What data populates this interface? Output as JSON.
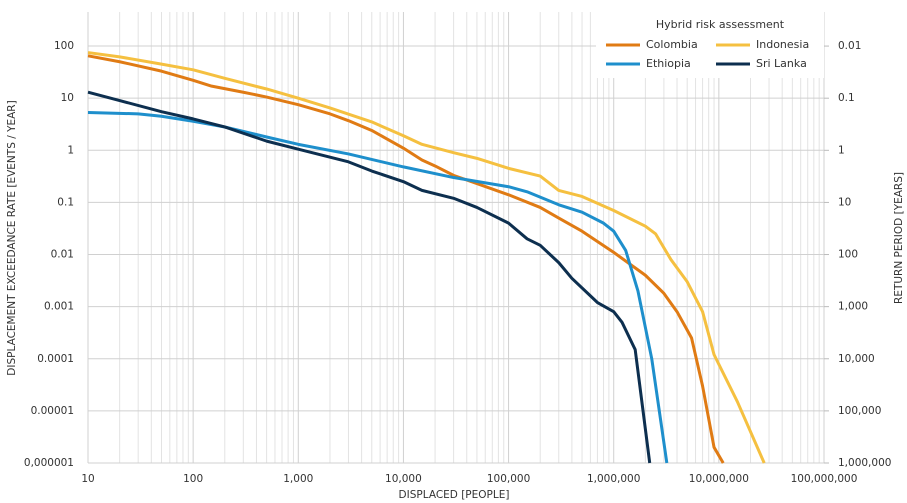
{
  "chart_data": {
    "type": "line",
    "y_axis_label": "DISPLACEMENT EXCEEDANCE RATE [EVENTS / YEAR]",
    "x_axis_label": "DISPLACED [PEOPLE]",
    "y2_axis_label": "RETURN PERIOD [YEARS]",
    "legend_title": "Hybrid risk assessment",
    "legend_position": "upper right",
    "x_log": true,
    "y_log": true,
    "y2_log": true,
    "grid": true,
    "xlim": [
      10,
      100000000
    ],
    "ylim": [
      1e-06,
      450
    ],
    "y2lim": [
      1000000,
      0.00222
    ],
    "xticks": [
      10,
      100,
      {
        "value": 1000,
        "label": "1,000"
      },
      {
        "value": 10000,
        "label": "10,000"
      },
      {
        "value": 100000,
        "label": "100,000"
      },
      {
        "value": 1000000,
        "label": "1,000,000"
      },
      {
        "value": 10000000,
        "label": "10,000,000"
      },
      {
        "value": 100000000,
        "label": "100,000,000"
      }
    ],
    "yticks": [
      {
        "value": 1e-06,
        "label": "0,000001"
      },
      1e-05,
      0.0001,
      0.001,
      0.01,
      0.1,
      1,
      10,
      100
    ],
    "y2ticks": [
      {
        "value": 1000000,
        "label": "1,000,000"
      },
      {
        "value": 100000,
        "label": "100,000"
      },
      {
        "value": 10000,
        "label": "10,000"
      },
      {
        "value": 1000,
        "label": "1,000"
      },
      100,
      10,
      1,
      0.1,
      0.01
    ],
    "series": [
      {
        "name": "Colombia",
        "color": "#e07b14",
        "x": [
          10,
          20,
          50,
          100,
          150,
          300,
          500,
          1000,
          2000,
          3000,
          5000,
          10000,
          15000,
          20000,
          30000,
          50000,
          100000,
          200000,
          300000,
          500000,
          1000000,
          2000000,
          3000000,
          4000000,
          5500000,
          7000000,
          9000000,
          11000000
        ],
        "values": [
          65,
          50,
          33,
          22,
          17,
          13,
          10.5,
          7.5,
          5,
          3.7,
          2.4,
          1.1,
          0.65,
          0.5,
          0.33,
          0.23,
          0.14,
          0.08,
          0.05,
          0.028,
          0.011,
          0.004,
          0.0018,
          0.0008,
          0.00025,
          3e-05,
          2e-06,
          1e-06
        ]
      },
      {
        "name": "Indonesia",
        "color": "#f5c040",
        "x": [
          10,
          20,
          50,
          100,
          200,
          500,
          1000,
          2000,
          5000,
          10000,
          15000,
          30000,
          50000,
          100000,
          200000,
          300000,
          500000,
          1000000,
          2000000,
          2500000,
          3500000,
          5000000,
          7000000,
          9000000,
          15000000,
          27000000
        ],
        "values": [
          75,
          62,
          45,
          35,
          24,
          15,
          10,
          6.5,
          3.5,
          1.9,
          1.3,
          0.9,
          0.7,
          0.45,
          0.32,
          0.17,
          0.13,
          0.07,
          0.035,
          0.025,
          0.008,
          0.003,
          0.0008,
          0.00012,
          1.5e-05,
          1e-06
        ]
      },
      {
        "name": "Ethiopia",
        "color": "#1e8fcc",
        "x": [
          10,
          30,
          50,
          100,
          200,
          500,
          1000,
          3000,
          10000,
          30000,
          100000,
          150000,
          300000,
          500000,
          800000,
          1000000,
          1300000,
          1700000,
          2300000,
          3200000
        ],
        "values": [
          5.3,
          5,
          4.5,
          3.6,
          2.8,
          1.8,
          1.3,
          0.85,
          0.48,
          0.3,
          0.2,
          0.16,
          0.09,
          0.065,
          0.04,
          0.028,
          0.012,
          0.002,
          0.0001,
          1e-06
        ]
      },
      {
        "name": "Sri Lanka",
        "color": "#0d2f4f",
        "x": [
          10,
          20,
          50,
          100,
          200,
          500,
          1000,
          3000,
          5000,
          10000,
          15000,
          30000,
          50000,
          100000,
          150000,
          200000,
          300000,
          400000,
          700000,
          1000000,
          1200000,
          1600000,
          2200000
        ],
        "values": [
          13,
          9,
          5.5,
          4,
          2.8,
          1.5,
          1.05,
          0.6,
          0.4,
          0.25,
          0.17,
          0.12,
          0.08,
          0.04,
          0.02,
          0.015,
          0.007,
          0.0035,
          0.0012,
          0.0008,
          0.0005,
          0.00015,
          1e-06
        ]
      }
    ]
  }
}
